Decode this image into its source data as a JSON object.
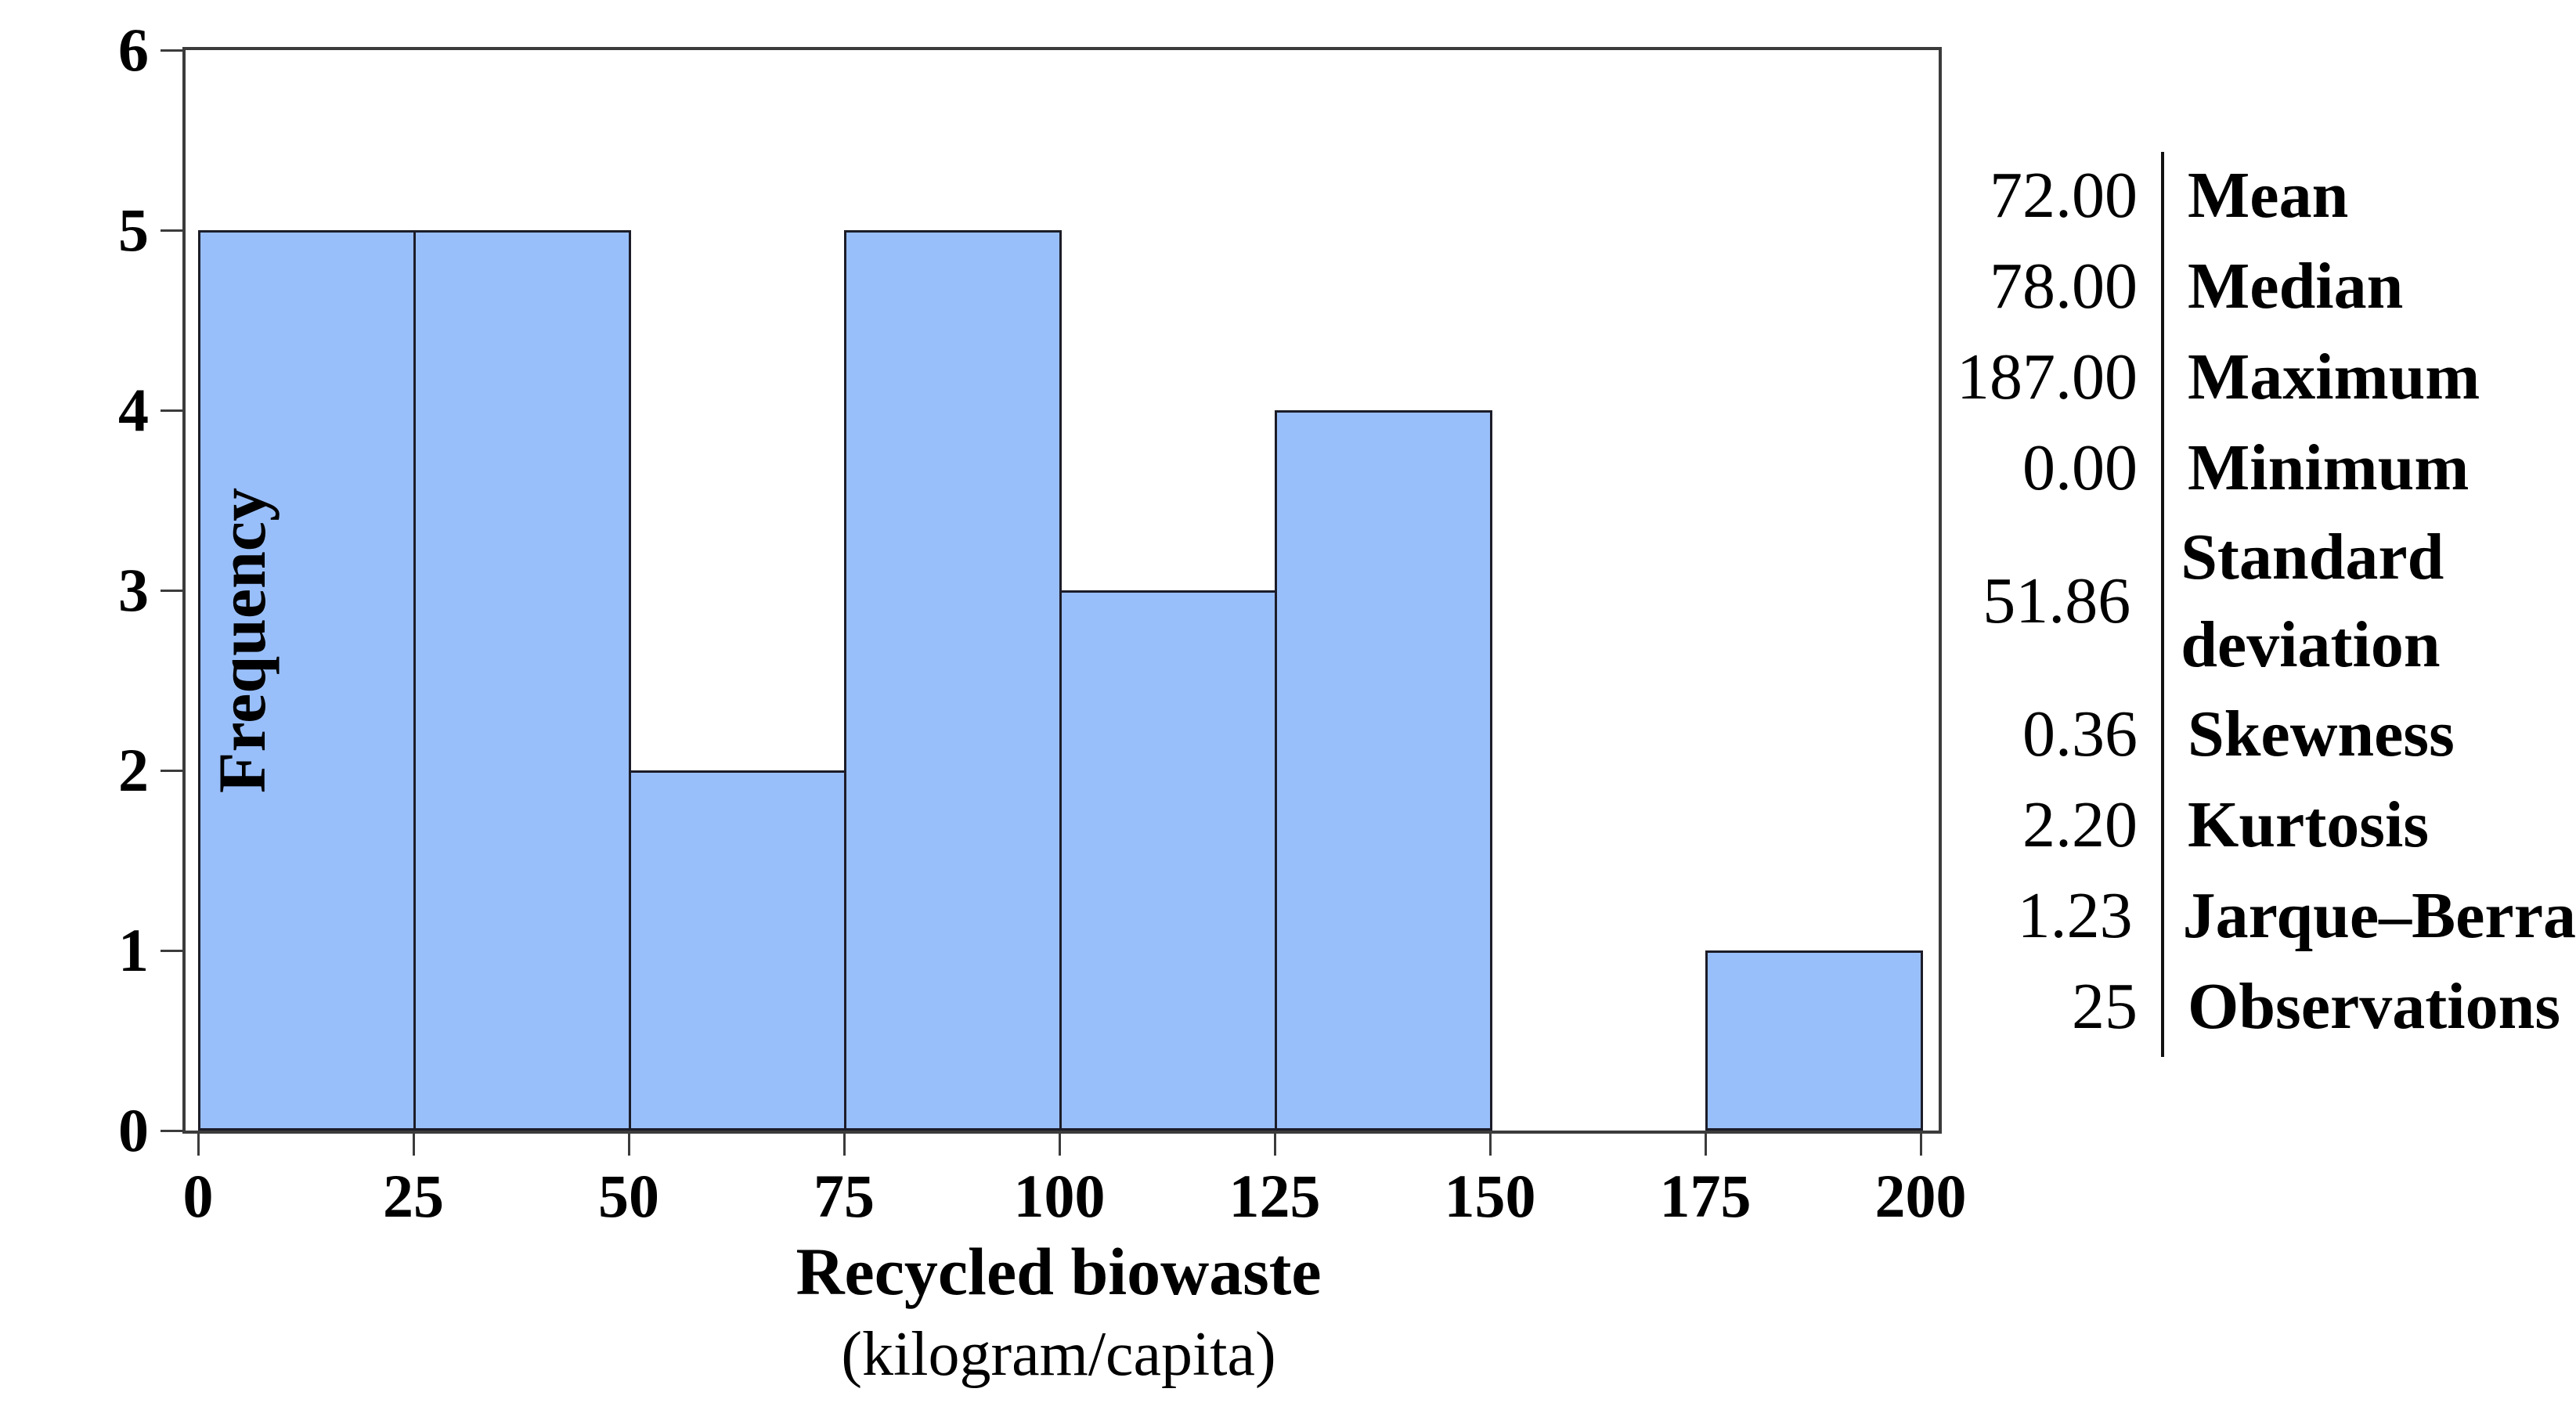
{
  "chart_data": {
    "type": "bar",
    "subtype": "histogram",
    "title": "",
    "xlabel": "Recycled biowaste",
    "xlabel_unit": "(kilogram/capita)",
    "ylabel": "Frequency",
    "xlim": [
      0,
      200
    ],
    "ylim": [
      0,
      6
    ],
    "x_ticks": [
      0,
      25,
      50,
      75,
      100,
      125,
      150,
      175,
      200
    ],
    "y_ticks": [
      0,
      1,
      2,
      3,
      4,
      5,
      6
    ],
    "bin_width": 25,
    "bins": [
      {
        "range": [
          0,
          25
        ],
        "frequency": 5
      },
      {
        "range": [
          25,
          50
        ],
        "frequency": 5
      },
      {
        "range": [
          50,
          75
        ],
        "frequency": 2
      },
      {
        "range": [
          75,
          100
        ],
        "frequency": 5
      },
      {
        "range": [
          100,
          125
        ],
        "frequency": 3
      },
      {
        "range": [
          125,
          150
        ],
        "frequency": 4
      },
      {
        "range": [
          150,
          175
        ],
        "frequency": 0
      },
      {
        "range": [
          175,
          200
        ],
        "frequency": 1
      }
    ],
    "grid": false,
    "legend": "none",
    "bar_fill": "#99BFFA",
    "bar_stroke": "#1c1c28",
    "axis_color": "#3b3b3b"
  },
  "stats_panel": {
    "rows": [
      {
        "value": "72.00",
        "label": "Mean",
        "two_line": false
      },
      {
        "value": "78.00",
        "label": "Median",
        "two_line": false
      },
      {
        "value": "187.00",
        "label": "Maximum",
        "two_line": false
      },
      {
        "value": "0.00",
        "label": "Minimum",
        "two_line": false
      },
      {
        "value": "51.86",
        "label": "Standard deviation",
        "two_line": true
      },
      {
        "value": "0.36",
        "label": "Skewness",
        "two_line": false
      },
      {
        "value": "2.20",
        "label": "Kurtosis",
        "two_line": false
      },
      {
        "value": "1.23",
        "label": "Jarque–Berra",
        "two_line": false
      },
      {
        "value": "25",
        "label": "Observations",
        "two_line": false
      }
    ]
  }
}
